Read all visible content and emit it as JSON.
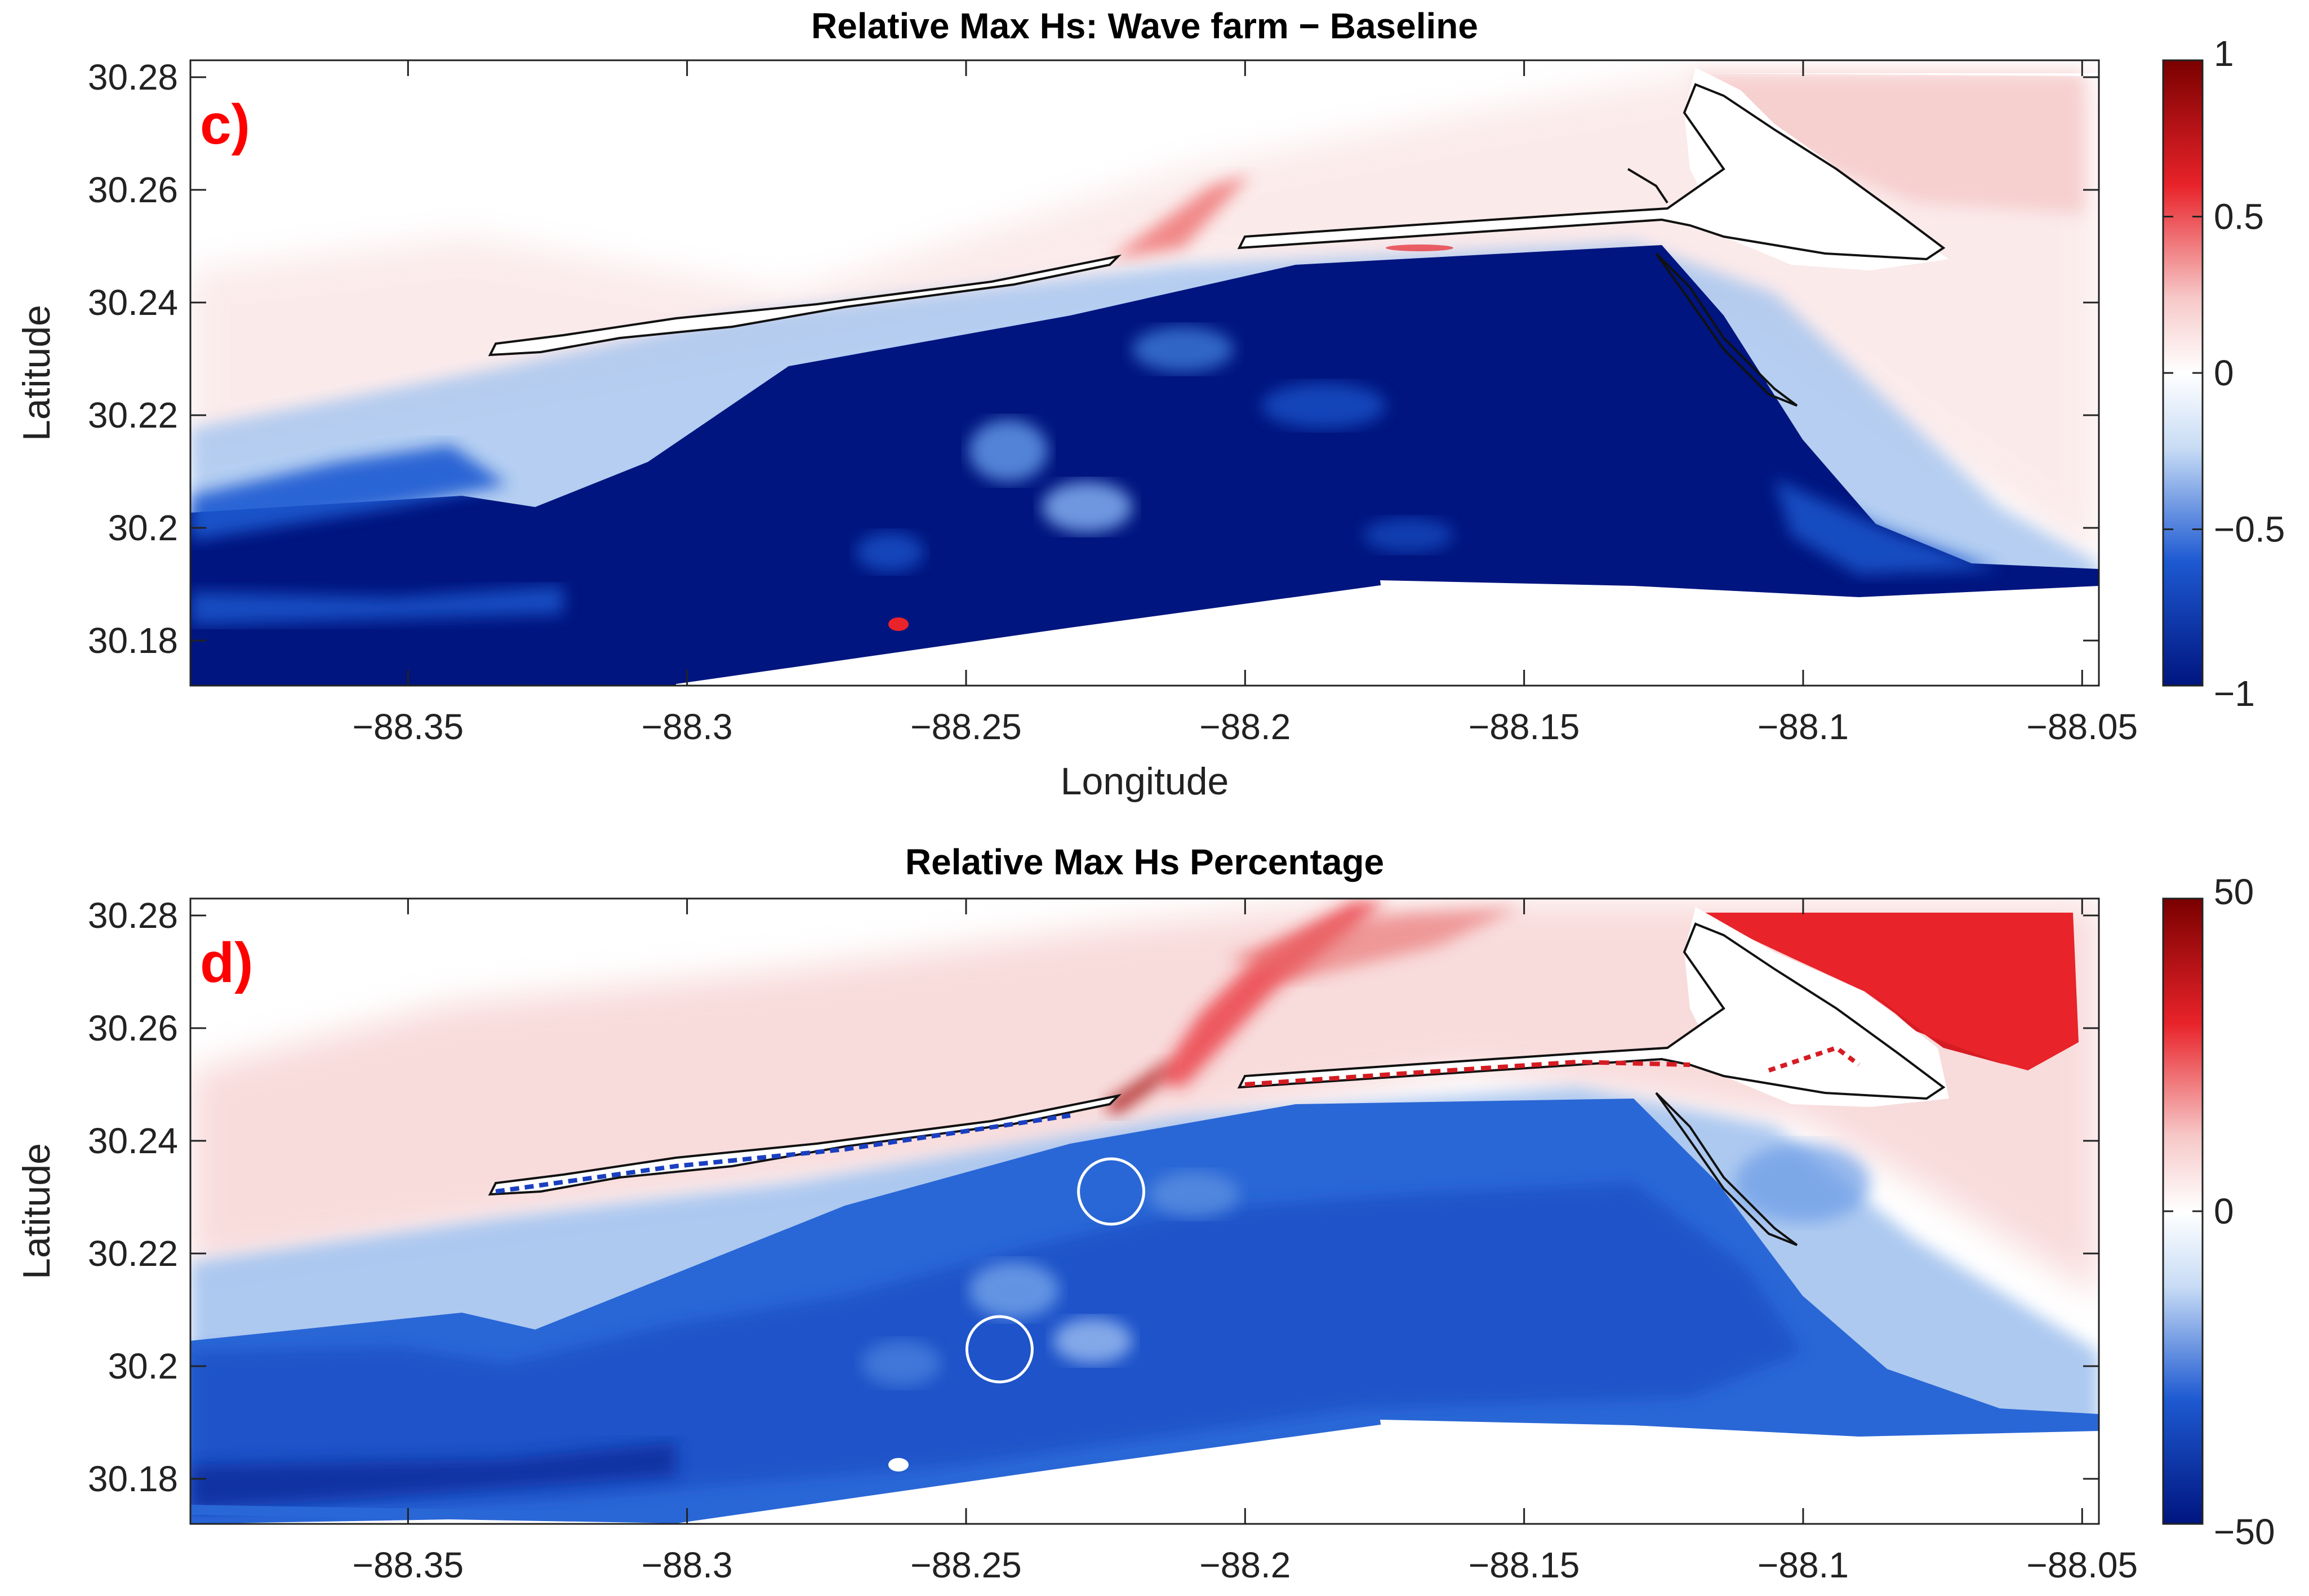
{
  "figure": {
    "panels": [
      {
        "panel_label": "c)",
        "title": "Relative Max Hs: Wave farm − Baseline",
        "xlabel": "Longitude",
        "ylabel": "Latitude",
        "colorbar_ticks": [
          "1",
          "0.5",
          "0",
          "−0.5",
          "−1"
        ]
      },
      {
        "panel_label": "d)",
        "title": "Relative Max Hs Percentage",
        "xlabel": "",
        "ylabel": "Latitude",
        "colorbar_ticks": [
          "50",
          "0",
          "−50"
        ]
      }
    ],
    "colors": {
      "panel_label": "#ff0000",
      "deep_negative": "#00157f",
      "negative": "#1e5ad2",
      "light_negative": "#c8dcf5",
      "neutral": "#ffffff",
      "light_positive": "#f7d2d2",
      "positive": "#e8232a",
      "deep_positive": "#7a0000",
      "coastline": "#1a1a1a",
      "turbine_marker": "#ffffff"
    }
  },
  "chart_data": [
    {
      "type": "heatmap",
      "title": "Relative Max Hs: Wave farm − Baseline",
      "xlabel": "Longitude",
      "ylabel": "Latitude",
      "xlim": [
        -88.389,
        -88.047
      ],
      "ylim": [
        30.172,
        30.283
      ],
      "x_ticks": [
        "−88.35",
        "−88.3",
        "−88.25",
        "−88.2",
        "−88.15",
        "−88.1",
        "−88.05"
      ],
      "x_tick_values": [
        -88.35,
        -88.3,
        -88.25,
        -88.2,
        -88.15,
        -88.1,
        -88.05
      ],
      "y_ticks": [
        "30.28",
        "30.26",
        "30.24",
        "30.22",
        "30.2",
        "30.18"
      ],
      "y_tick_values": [
        30.28,
        30.26,
        30.24,
        30.22,
        30.2,
        30.18
      ],
      "colorbar": {
        "range": [
          -1,
          1
        ],
        "ticks": [
          "1",
          "0.5",
          "0",
          "−0.5",
          "−1"
        ],
        "tick_values": [
          1,
          0.5,
          0,
          -0.5,
          -1
        ],
        "colormap": "blue-white-red"
      },
      "grid": false
    },
    {
      "type": "heatmap",
      "title": "Relative Max Hs Percentage",
      "xlabel": "",
      "ylabel": "Latitude",
      "xlim": [
        -88.389,
        -88.047
      ],
      "ylim": [
        30.172,
        30.283
      ],
      "x_ticks": [
        "−88.35",
        "−88.3",
        "−88.25",
        "−88.2",
        "−88.15",
        "−88.1",
        "−88.05"
      ],
      "x_tick_values": [
        -88.35,
        -88.3,
        -88.25,
        -88.2,
        -88.15,
        -88.1,
        -88.05
      ],
      "y_ticks": [
        "30.28",
        "30.26",
        "30.24",
        "30.22",
        "30.2",
        "30.18"
      ],
      "y_tick_values": [
        30.28,
        30.26,
        30.24,
        30.22,
        30.2,
        30.18
      ],
      "colorbar": {
        "range": [
          -50,
          50
        ],
        "ticks": [
          "50",
          "0",
          "−50"
        ],
        "tick_values": [
          50,
          0,
          -50
        ],
        "colormap": "blue-white-red"
      },
      "grid": false,
      "markers": [
        {
          "type": "circle",
          "lon": -88.224,
          "lat": 30.231
        },
        {
          "type": "circle",
          "lon": -88.244,
          "lat": 30.203
        }
      ]
    }
  ]
}
